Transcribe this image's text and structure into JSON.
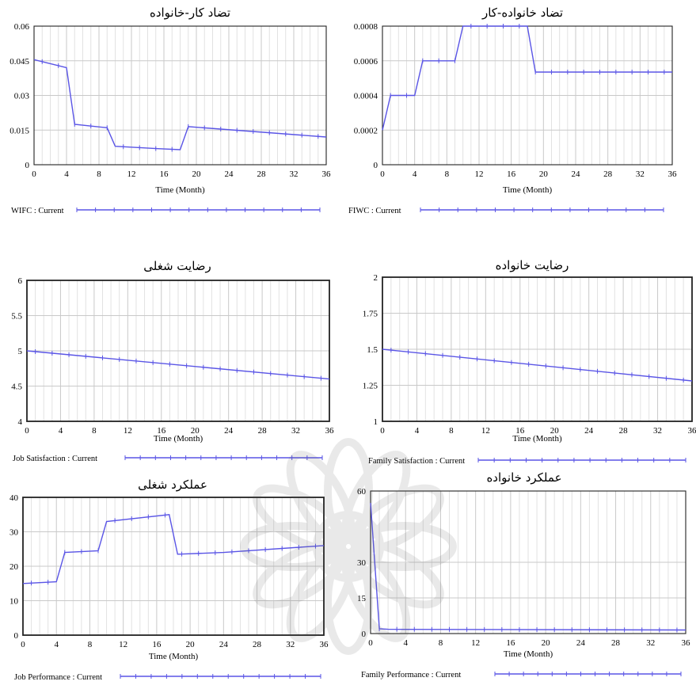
{
  "x_ticks": [
    "0",
    "4",
    "8",
    "12",
    "16",
    "20",
    "24",
    "28",
    "32",
    "36"
  ],
  "chart_data": [
    {
      "type": "line",
      "title": "تضاد کار-خانواده",
      "xlabel": "Time (Month)",
      "ylabel": "",
      "xlim": [
        0,
        36
      ],
      "ylim": [
        0,
        0.06
      ],
      "y_ticks": [
        "0",
        "0.015",
        "0.03",
        "0.045",
        "0.06"
      ],
      "grid": true,
      "legend": "bottom",
      "series": [
        {
          "name": "WIFC : Current",
          "color": "#5a55e6",
          "x": [
            0,
            4,
            5,
            9,
            10,
            15,
            18,
            19,
            36
          ],
          "y": [
            0.0455,
            0.042,
            0.0175,
            0.016,
            0.008,
            0.007,
            0.0065,
            0.0165,
            0.012
          ]
        }
      ]
    },
    {
      "type": "line",
      "title": "تضاد خانواده-کار",
      "xlabel": "Time (Month)",
      "ylabel": "",
      "xlim": [
        0,
        36
      ],
      "ylim": [
        0,
        0.0008
      ],
      "y_ticks": [
        "0",
        "0.0002",
        "0.0004",
        "0.0006",
        "0.0008"
      ],
      "grid": true,
      "legend": "bottom",
      "series": [
        {
          "name": "FIWC : Current",
          "color": "#5a55e6",
          "x": [
            0,
            1,
            4,
            5,
            9,
            10,
            18,
            19,
            36
          ],
          "y": [
            0.0002,
            0.0004,
            0.0004,
            0.0006,
            0.0006,
            0.0008,
            0.0008,
            0.000535,
            0.000535
          ]
        }
      ]
    },
    {
      "type": "line",
      "title": "رضایت شغلی",
      "xlabel": "Time (Month)",
      "ylabel": "",
      "xlim": [
        0,
        36
      ],
      "ylim": [
        4,
        6
      ],
      "y_ticks": [
        "4",
        "4.5",
        "5",
        "5.5",
        "6"
      ],
      "grid": true,
      "legend": "bottom",
      "series": [
        {
          "name": "Job Satisfaction : Current",
          "color": "#5a55e6",
          "x": [
            0,
            36
          ],
          "y": [
            5.0,
            4.6
          ]
        }
      ]
    },
    {
      "type": "line",
      "title": "رضایت خانواده",
      "xlabel": "Time (Month)",
      "ylabel": "",
      "xlim": [
        0,
        36
      ],
      "ylim": [
        1,
        2
      ],
      "y_ticks": [
        "1",
        "1.25",
        "1.5",
        "1.75",
        "2"
      ],
      "grid": true,
      "legend": "bottom",
      "series": [
        {
          "name": "Family Satisfaction : Current",
          "color": "#5a55e6",
          "x": [
            0,
            36
          ],
          "y": [
            1.5,
            1.28
          ]
        }
      ]
    },
    {
      "type": "line",
      "title": "عملکرد شغلی",
      "xlabel": "Time (Month)",
      "ylabel": "",
      "xlim": [
        0,
        36
      ],
      "ylim": [
        0,
        40
      ],
      "y_ticks": [
        "0",
        "10",
        "20",
        "30",
        "40"
      ],
      "grid": true,
      "legend": "bottom",
      "series": [
        {
          "name": "Job Performance : Current",
          "color": "#5a55e6",
          "x": [
            0,
            4,
            5,
            9,
            10,
            17.5,
            18.5,
            24,
            36
          ],
          "y": [
            15,
            15.5,
            24,
            24.5,
            33,
            35,
            23.5,
            24,
            26
          ]
        }
      ]
    },
    {
      "type": "line",
      "title": "عملکرد خانواده",
      "xlabel": "Time (Month)",
      "ylabel": "",
      "xlim": [
        0,
        36
      ],
      "ylim": [
        0,
        60
      ],
      "y_ticks": [
        "0",
        "15",
        "30",
        "60"
      ],
      "grid": true,
      "legend": "bottom",
      "series": [
        {
          "name": "Family Performance : Current",
          "color": "#5a55e6",
          "x": [
            0,
            1,
            2,
            36
          ],
          "y": [
            55,
            2,
            1.8,
            1.5
          ]
        }
      ]
    }
  ]
}
